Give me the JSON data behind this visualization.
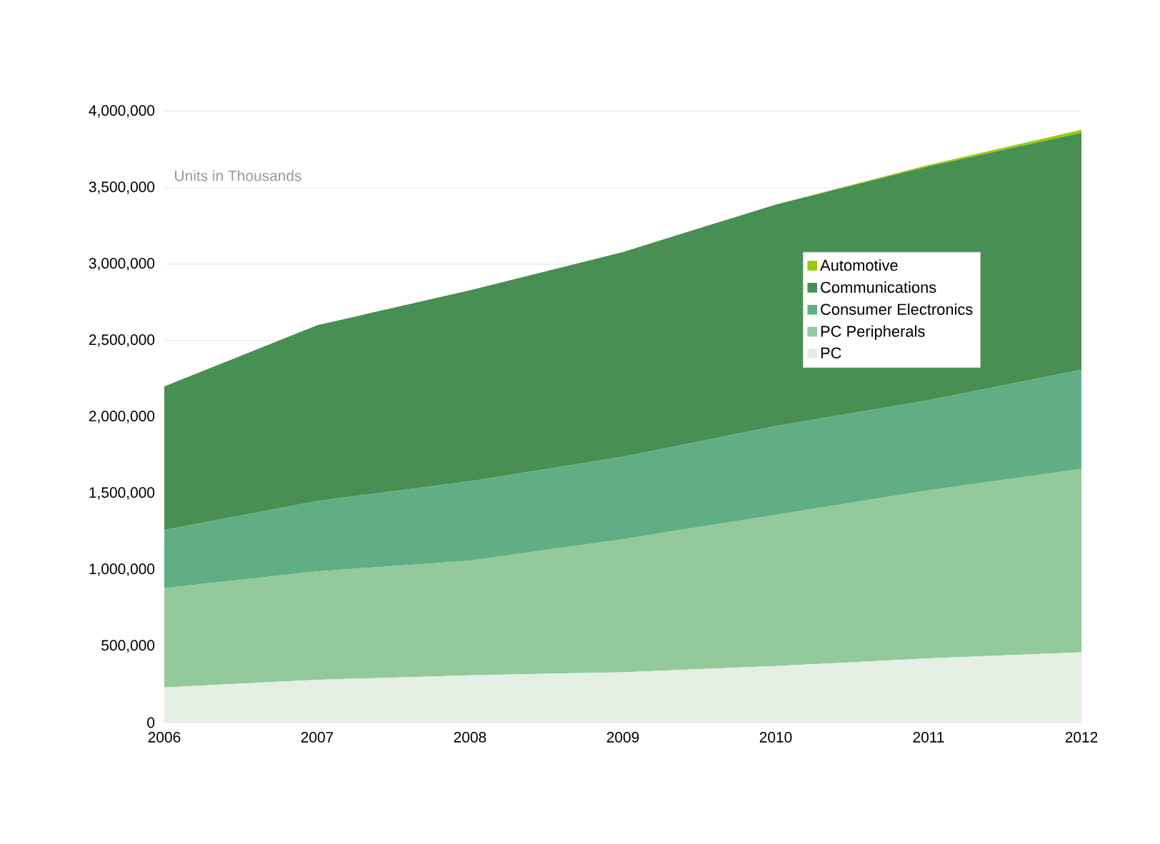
{
  "chart_data": {
    "type": "area",
    "stacked": true,
    "categories": [
      "2006",
      "2007",
      "2008",
      "2009",
      "2010",
      "2011",
      "2012"
    ],
    "series": [
      {
        "name": "PC",
        "color": "#e4f0e3",
        "values": [
          230000,
          280000,
          310000,
          330000,
          370000,
          420000,
          460000
        ]
      },
      {
        "name": "PC Peripherals",
        "color": "#93c99b",
        "values": [
          650000,
          710000,
          750000,
          870000,
          990000,
          1100000,
          1200000
        ]
      },
      {
        "name": "Consumer Electronics",
        "color": "#62ae84",
        "values": [
          380000,
          460000,
          520000,
          540000,
          580000,
          590000,
          650000
        ]
      },
      {
        "name": "Communications",
        "color": "#478f53",
        "values": [
          940000,
          1150000,
          1250000,
          1340000,
          1450000,
          1530000,
          1550000
        ]
      },
      {
        "name": "Automotive",
        "color": "#99cc00",
        "values": [
          0,
          0,
          0,
          0,
          0,
          10000,
          20000
        ]
      }
    ],
    "ylim": [
      0,
      4000000
    ],
    "yticks": [
      0,
      {
        "value": 500000,
        "label": "500,000"
      },
      {
        "value": 1000000,
        "label": "1,000,000"
      },
      {
        "value": 1500000,
        "label": "1,500,000"
      },
      {
        "value": 2000000,
        "label": "2,000,000"
      },
      {
        "value": 2500000,
        "label": "2,500,000"
      },
      {
        "value": 3000000,
        "label": "3,000,000"
      },
      {
        "value": 3500000,
        "label": "3,500,000"
      },
      {
        "value": 4000000,
        "label": "4,000,000"
      }
    ],
    "grid": "y",
    "legend": "right",
    "annotations": [
      "Units in Thousands"
    ]
  }
}
